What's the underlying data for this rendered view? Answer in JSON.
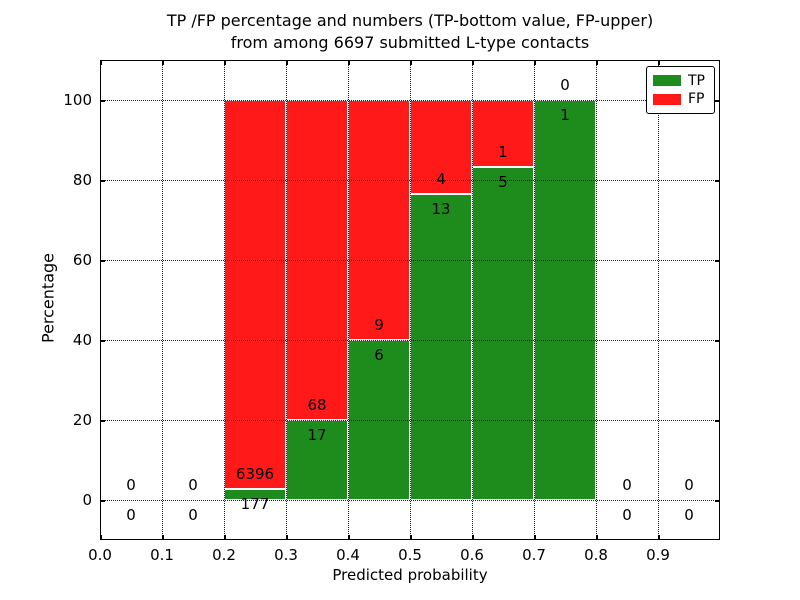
{
  "title": {
    "line1": "TP /FP percentage and numbers (TP-bottom value, FP-upper)",
    "line2": "from among 6697 submitted L-type contacts"
  },
  "colors": {
    "tp_green": "#1d8c1d",
    "fp_red": "#ff1919",
    "grid": "#000000",
    "background": "#ffffff"
  },
  "chart_data": {
    "type": "bar",
    "stacked": true,
    "title": "TP /FP percentage and numbers (TP-bottom value, FP-upper) from among 6697 submitted L-type contacts",
    "xlabel": "Predicted probability",
    "ylabel": "Percentage",
    "xlim": [
      0.0,
      1.0
    ],
    "ylim": [
      -10,
      110
    ],
    "grid": "dotted black, drawn above bars",
    "legend_position": "upper right",
    "x_ticks": [
      {
        "v": 0.0,
        "label": "0.0"
      },
      {
        "v": 0.1,
        "label": "0.1"
      },
      {
        "v": 0.2,
        "label": "0.2"
      },
      {
        "v": 0.3,
        "label": "0.3"
      },
      {
        "v": 0.4,
        "label": "0.4"
      },
      {
        "v": 0.5,
        "label": "0.5"
      },
      {
        "v": 0.6,
        "label": "0.6"
      },
      {
        "v": 0.7,
        "label": "0.7"
      },
      {
        "v": 0.8,
        "label": "0.8"
      },
      {
        "v": 0.9,
        "label": "0.9"
      }
    ],
    "y_ticks": [
      {
        "v": 0,
        "label": "0"
      },
      {
        "v": 20,
        "label": "20"
      },
      {
        "v": 40,
        "label": "40"
      },
      {
        "v": 60,
        "label": "60"
      },
      {
        "v": 80,
        "label": "80"
      },
      {
        "v": 100,
        "label": "100"
      }
    ],
    "series": [
      {
        "name": "TP",
        "color": "#1d8c1d"
      },
      {
        "name": "FP",
        "color": "#ff1919"
      }
    ],
    "bins": [
      {
        "range": [
          0.0,
          0.1
        ],
        "tp": 0,
        "fp": 0,
        "tp_pct": null
      },
      {
        "range": [
          0.1,
          0.2
        ],
        "tp": 0,
        "fp": 0,
        "tp_pct": null
      },
      {
        "range": [
          0.2,
          0.3
        ],
        "tp": 177,
        "fp": 6396,
        "tp_pct": 2.69
      },
      {
        "range": [
          0.3,
          0.4
        ],
        "tp": 17,
        "fp": 68,
        "tp_pct": 20.0
      },
      {
        "range": [
          0.4,
          0.5
        ],
        "tp": 6,
        "fp": 9,
        "tp_pct": 40.0
      },
      {
        "range": [
          0.5,
          0.6
        ],
        "tp": 13,
        "fp": 4,
        "tp_pct": 76.47
      },
      {
        "range": [
          0.6,
          0.7
        ],
        "tp": 5,
        "fp": 1,
        "tp_pct": 83.33
      },
      {
        "range": [
          0.7,
          0.8
        ],
        "tp": 1,
        "fp": 0,
        "tp_pct": 100.0
      },
      {
        "range": [
          0.8,
          0.9
        ],
        "tp": 0,
        "fp": 0,
        "tp_pct": null
      },
      {
        "range": [
          0.9,
          1.0
        ],
        "tp": 0,
        "fp": 0,
        "tp_pct": null
      }
    ],
    "annotation_rule": "FP count printed just above TP/FP boundary, TP count just below"
  }
}
